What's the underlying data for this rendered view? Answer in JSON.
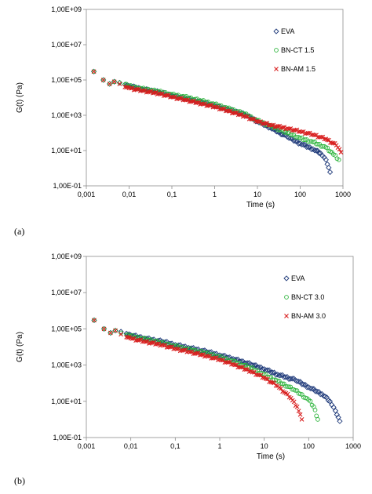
{
  "panel_labels": [
    "(a)",
    "(b)"
  ],
  "chart_data": [
    {
      "type": "scatter",
      "panel": "(a)",
      "xlabel": "Time (s)",
      "ylabel": "G(t) (Pa)",
      "xscale": "log",
      "yscale": "log",
      "xlim": [
        0.001,
        1000
      ],
      "ylim": [
        0.1,
        1000000000
      ],
      "x_ticks": [
        "0,001",
        "0,01",
        "0,1",
        "1",
        "10",
        "100",
        "1000"
      ],
      "y_ticks": [
        "1,00E-01",
        "1,00E+01",
        "1,00E+03",
        "1,00E+05",
        "1,00E+07",
        "1,00E+09"
      ],
      "grid": false,
      "legend_position": "top-right",
      "series": [
        {
          "name": "EVA",
          "marker": "diamond",
          "color": "#1F3A7A",
          "x": [
            0.0015,
            0.0025,
            0.0035,
            0.0045,
            0.006,
            0.008,
            0.01,
            0.02,
            0.05,
            0.1,
            0.2,
            0.5,
            1,
            2,
            5,
            10,
            20,
            50,
            100,
            200,
            300,
            400,
            500
          ],
          "y": [
            300000,
            100000,
            60000,
            80000,
            70000,
            55000,
            45000,
            30000,
            20000,
            13000,
            9000,
            5500,
            3500,
            2200,
            1100,
            450,
            200,
            60,
            25,
            12,
            7,
            3,
            0.6
          ]
        },
        {
          "name": "BN-CT 1.5",
          "marker": "circle",
          "color": "#2DB43C",
          "x": [
            0.0015,
            0.0025,
            0.0035,
            0.0045,
            0.006,
            0.008,
            0.01,
            0.02,
            0.05,
            0.1,
            0.2,
            0.5,
            1,
            2,
            5,
            10,
            20,
            50,
            100,
            200,
            400,
            600,
            800
          ],
          "y": [
            300000,
            100000,
            60000,
            80000,
            70000,
            55000,
            45000,
            32000,
            22000,
            15000,
            11000,
            6500,
            4200,
            2500,
            1200,
            500,
            250,
            100,
            50,
            30,
            15,
            6,
            3
          ]
        },
        {
          "name": "BN-AM 1.5",
          "marker": "x",
          "color": "#D81E1E",
          "x": [
            0.0015,
            0.0025,
            0.0035,
            0.0045,
            0.006,
            0.008,
            0.01,
            0.02,
            0.05,
            0.1,
            0.2,
            0.5,
            1,
            2,
            5,
            10,
            20,
            50,
            100,
            200,
            400,
            700,
            900
          ],
          "y": [
            300000,
            100000,
            60000,
            80000,
            60000,
            40000,
            35000,
            25000,
            17000,
            11000,
            7500,
            4500,
            3000,
            1800,
            900,
            450,
            280,
            180,
            120,
            80,
            45,
            20,
            8
          ]
        }
      ]
    },
    {
      "type": "scatter",
      "panel": "(b)",
      "xlabel": "Time (s)",
      "ylabel": "G(t) (Pa)",
      "xscale": "log",
      "yscale": "log",
      "xlim": [
        0.001,
        1000
      ],
      "ylim": [
        0.1,
        1000000000
      ],
      "x_ticks": [
        "0,001",
        "0,01",
        "0,1",
        "1",
        "10",
        "100",
        "1000"
      ],
      "y_ticks": [
        "1,00E-01",
        "1,00E+01",
        "1,00E+03",
        "1,00E+05",
        "1,00E+07",
        "1,00E+09"
      ],
      "grid": false,
      "legend_position": "top-right",
      "series": [
        {
          "name": "EVA",
          "marker": "diamond",
          "color": "#1F3A7A",
          "x": [
            0.0015,
            0.0025,
            0.0035,
            0.0045,
            0.006,
            0.008,
            0.01,
            0.02,
            0.05,
            0.1,
            0.2,
            0.5,
            1,
            2,
            5,
            10,
            20,
            50,
            100,
            200,
            300,
            400,
            500
          ],
          "y": [
            300000,
            100000,
            60000,
            80000,
            70000,
            55000,
            45000,
            30000,
            20000,
            13000,
            9000,
            5500,
            3500,
            2200,
            1100,
            600,
            300,
            150,
            60,
            25,
            10,
            3,
            0.8
          ]
        },
        {
          "name": "BN-CT 3.0",
          "marker": "circle",
          "color": "#2DB43C",
          "x": [
            0.0015,
            0.0025,
            0.0035,
            0.0045,
            0.006,
            0.008,
            0.01,
            0.02,
            0.05,
            0.1,
            0.2,
            0.5,
            1,
            2,
            5,
            10,
            20,
            50,
            100,
            130,
            160
          ],
          "y": [
            300000,
            100000,
            60000,
            80000,
            60000,
            45000,
            40000,
            28000,
            17000,
            11000,
            7500,
            4500,
            2800,
            1600,
            700,
            300,
            130,
            40,
            12,
            5,
            1
          ]
        },
        {
          "name": "BN-AM 3.0",
          "marker": "x",
          "color": "#D81E1E",
          "x": [
            0.0015,
            0.0025,
            0.0035,
            0.0045,
            0.006,
            0.008,
            0.01,
            0.02,
            0.05,
            0.1,
            0.2,
            0.5,
            1,
            2,
            5,
            10,
            20,
            40,
            55,
            70
          ],
          "y": [
            300000,
            100000,
            60000,
            80000,
            50000,
            35000,
            30000,
            20000,
            13000,
            8000,
            5500,
            3200,
            2000,
            1100,
            450,
            200,
            70,
            15,
            5,
            1
          ]
        }
      ]
    }
  ]
}
